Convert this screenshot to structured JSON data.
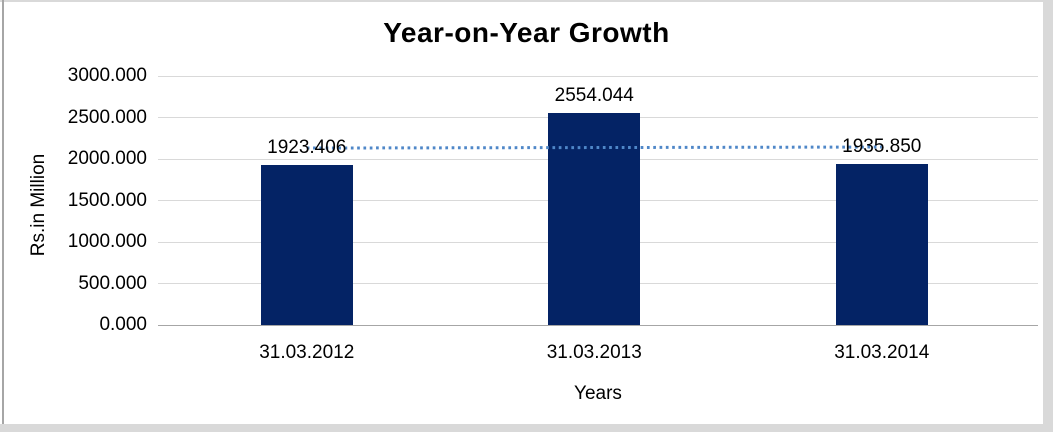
{
  "chart_data": {
    "type": "bar",
    "title": "Year-on-Year Growth",
    "xlabel": "Years",
    "ylabel": "Rs.in Million",
    "categories": [
      "31.03.2012",
      "31.03.2013",
      "31.03.2014"
    ],
    "values": [
      1923.406,
      2554.044,
      1935.85
    ],
    "data_labels": [
      "1923.406",
      "2554.044",
      "1935.850"
    ],
    "ylim": [
      0,
      3000
    ],
    "ytick_step": 500,
    "ytick_labels": [
      "0.000",
      "500.000",
      "1000.000",
      "1500.000",
      "2000.000",
      "2500.000",
      "3000.000"
    ],
    "grid": true,
    "legend_position": "none",
    "trendline": {
      "type": "linear",
      "style": "dotted",
      "start_value": 2131.8,
      "end_value": 2144.2
    },
    "colors": {
      "bar": "#042365",
      "trendline": "#4f87c8",
      "gridline": "#d9d9d9",
      "axis_line": "#a6a6a6",
      "text": "#000000",
      "frame": "#d9d9d9"
    }
  }
}
